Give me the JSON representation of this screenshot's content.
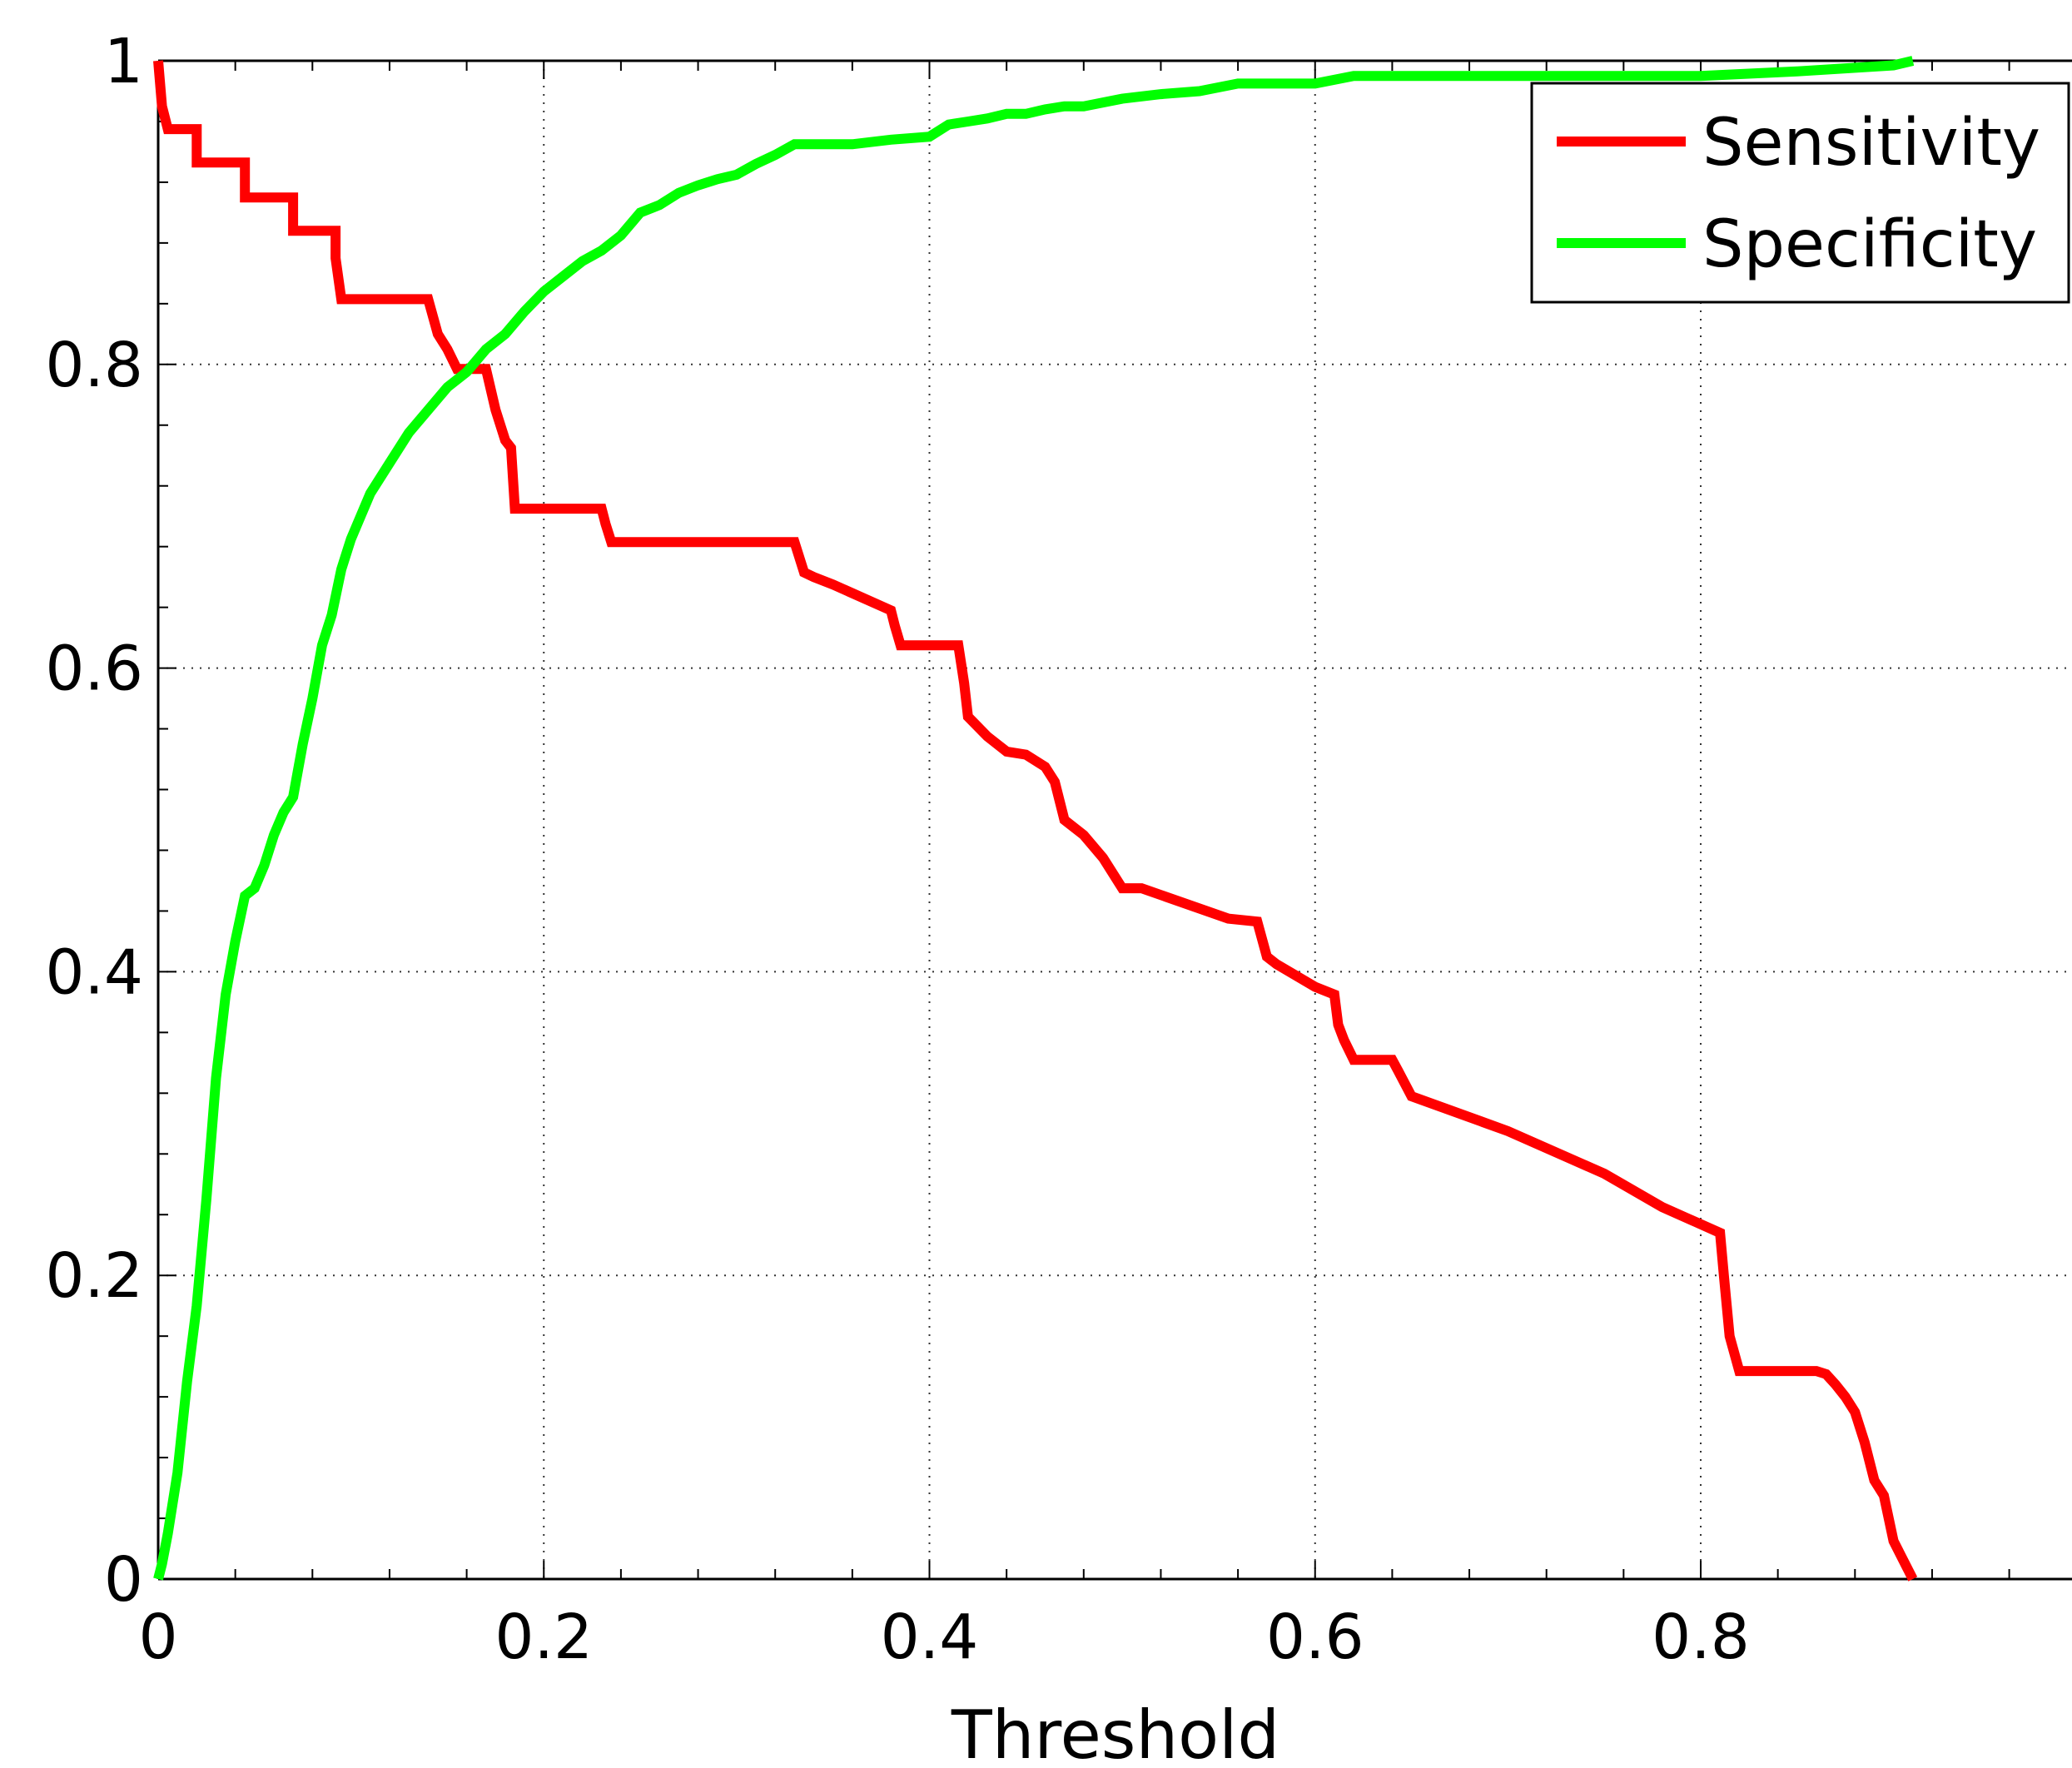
{
  "chart_data": {
    "type": "line",
    "title": "",
    "xlabel": "Threshold",
    "ylabel": "",
    "xlim": [
      0,
      1
    ],
    "ylim": [
      0,
      1
    ],
    "xticks": [
      0,
      0.2,
      0.4,
      0.6,
      0.8
    ],
    "xtick_labels": [
      "0",
      "0.2",
      "0.4",
      "0.6",
      "0.8"
    ],
    "yticks": [
      0,
      0.2,
      0.4,
      0.6,
      0.8,
      1
    ],
    "ytick_labels": [
      "0",
      "0.2",
      "0.4",
      "0.6",
      "0.8",
      "1"
    ],
    "grid": true,
    "legend_position": "top-right",
    "series": [
      {
        "name": "Sensitivity",
        "color": "#ff0000",
        "x": [
          0,
          0.002,
          0.005,
          0.005,
          0.02,
          0.02,
          0.045,
          0.045,
          0.07,
          0.07,
          0.092,
          0.092,
          0.095,
          0.1,
          0.14,
          0.145,
          0.15,
          0.155,
          0.16,
          0.17,
          0.175,
          0.18,
          0.183,
          0.185,
          0.19,
          0.23,
          0.232,
          0.235,
          0.33,
          0.335,
          0.34,
          0.35,
          0.38,
          0.382,
          0.385,
          0.415,
          0.418,
          0.42,
          0.43,
          0.44,
          0.45,
          0.46,
          0.465,
          0.47,
          0.48,
          0.49,
          0.5,
          0.51,
          0.555,
          0.57,
          0.575,
          0.58,
          0.6,
          0.61,
          0.612,
          0.615,
          0.62,
          0.64,
          0.643,
          0.65,
          0.7,
          0.75,
          0.78,
          0.81,
          0.812,
          0.815,
          0.82,
          0.86,
          0.865,
          0.87,
          0.875,
          0.88,
          0.885,
          0.89,
          0.895,
          0.9,
          0.91
        ],
        "y": [
          1,
          0.97,
          0.955,
          0.955,
          0.955,
          0.933,
          0.933,
          0.91,
          0.91,
          0.888,
          0.888,
          0.87,
          0.843,
          0.843,
          0.843,
          0.82,
          0.81,
          0.797,
          0.797,
          0.797,
          0.77,
          0.75,
          0.745,
          0.705,
          0.705,
          0.705,
          0.695,
          0.683,
          0.683,
          0.663,
          0.66,
          0.655,
          0.638,
          0.628,
          0.615,
          0.615,
          0.59,
          0.568,
          0.555,
          0.545,
          0.543,
          0.535,
          0.525,
          0.5,
          0.49,
          0.475,
          0.455,
          0.455,
          0.435,
          0.433,
          0.41,
          0.405,
          0.39,
          0.385,
          0.365,
          0.355,
          0.342,
          0.342,
          0.335,
          0.318,
          0.295,
          0.267,
          0.245,
          0.228,
          0.2,
          0.16,
          0.137,
          0.137,
          0.135,
          0.128,
          0.12,
          0.11,
          0.09,
          0.065,
          0.055,
          0.025,
          0
        ],
        "area_under_curve": null
      },
      {
        "name": "Specificity",
        "color": "#00ff00",
        "x": [
          0,
          0.002,
          0.005,
          0.01,
          0.015,
          0.02,
          0.025,
          0.03,
          0.035,
          0.04,
          0.045,
          0.05,
          0.055,
          0.06,
          0.065,
          0.07,
          0.075,
          0.08,
          0.085,
          0.09,
          0.095,
          0.1,
          0.105,
          0.11,
          0.12,
          0.13,
          0.14,
          0.15,
          0.16,
          0.17,
          0.18,
          0.19,
          0.2,
          0.21,
          0.22,
          0.23,
          0.24,
          0.25,
          0.26,
          0.27,
          0.28,
          0.29,
          0.3,
          0.31,
          0.32,
          0.33,
          0.34,
          0.35,
          0.36,
          0.38,
          0.4,
          0.41,
          0.42,
          0.43,
          0.44,
          0.45,
          0.46,
          0.47,
          0.48,
          0.5,
          0.52,
          0.54,
          0.56,
          0.58,
          0.6,
          0.62,
          0.64,
          0.66,
          0.7,
          0.75,
          0.8,
          0.85,
          0.9,
          0.91
        ],
        "y": [
          0,
          0.01,
          0.03,
          0.07,
          0.13,
          0.18,
          0.25,
          0.33,
          0.385,
          0.42,
          0.45,
          0.455,
          0.47,
          0.49,
          0.505,
          0.515,
          0.55,
          0.58,
          0.615,
          0.635,
          0.665,
          0.685,
          0.7,
          0.715,
          0.735,
          0.755,
          0.77,
          0.785,
          0.795,
          0.81,
          0.82,
          0.835,
          0.848,
          0.858,
          0.868,
          0.875,
          0.885,
          0.9,
          0.905,
          0.913,
          0.918,
          0.922,
          0.925,
          0.932,
          0.938,
          0.945,
          0.945,
          0.945,
          0.945,
          0.948,
          0.95,
          0.958,
          0.96,
          0.962,
          0.965,
          0.965,
          0.968,
          0.97,
          0.97,
          0.975,
          0.978,
          0.98,
          0.985,
          0.985,
          0.985,
          0.99,
          0.99,
          0.99,
          0.99,
          0.99,
          0.99,
          0.993,
          0.997,
          1
        ]
      }
    ]
  }
}
